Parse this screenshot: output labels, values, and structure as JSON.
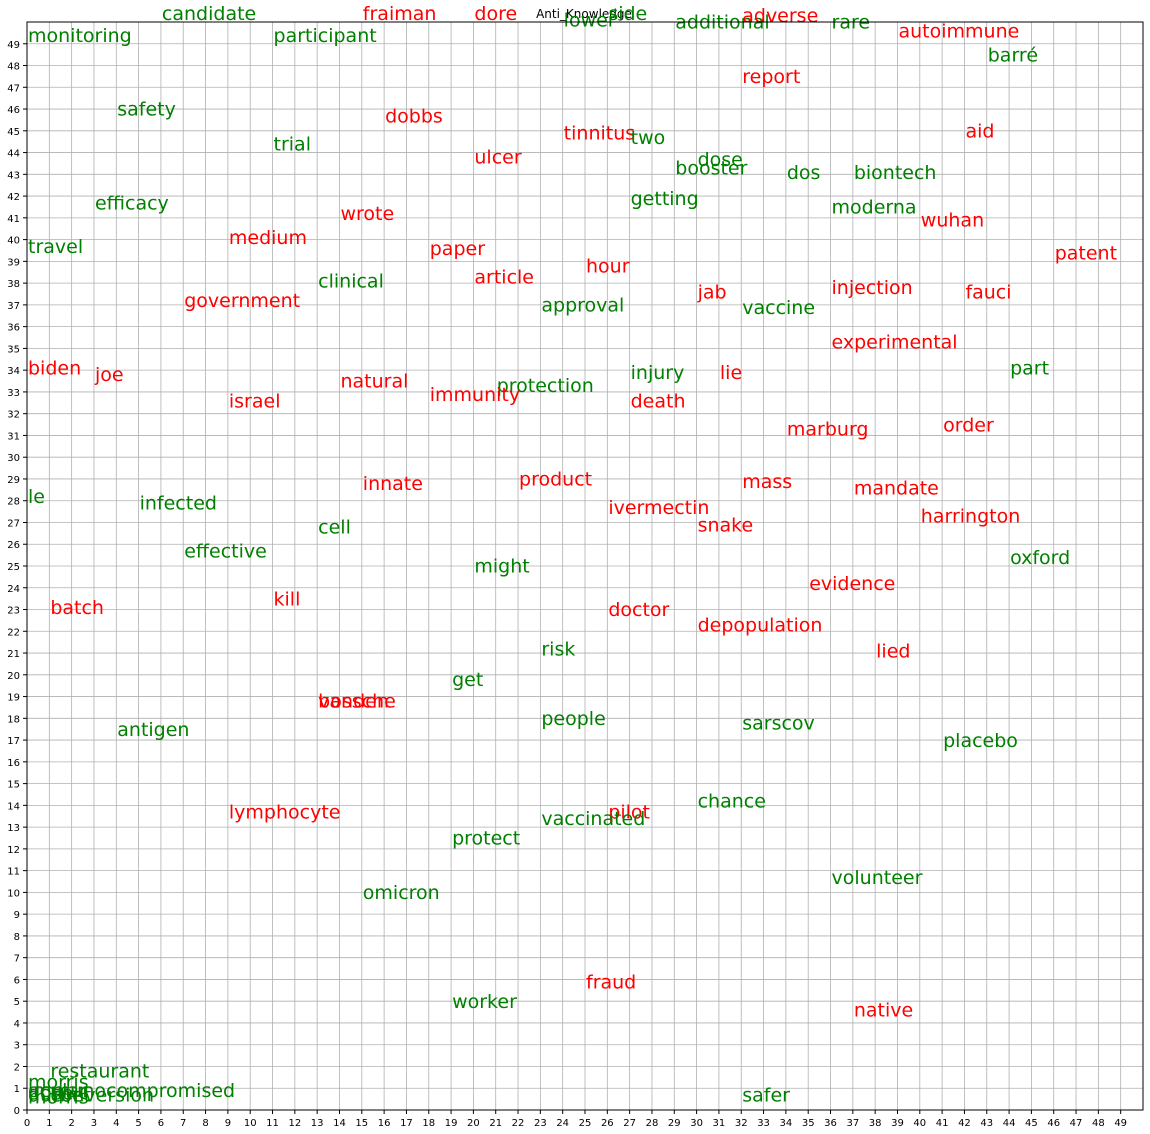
{
  "chart_data": {
    "type": "scatter",
    "title": "Anti_Knowledge",
    "xlabel": "",
    "ylabel": "",
    "xlim": [
      0,
      50
    ],
    "ylim": [
      0,
      50
    ],
    "xticks": [
      0,
      1,
      2,
      3,
      4,
      5,
      6,
      7,
      8,
      9,
      10,
      11,
      12,
      13,
      14,
      15,
      16,
      17,
      18,
      19,
      20,
      21,
      22,
      23,
      24,
      25,
      26,
      27,
      28,
      29,
      30,
      31,
      32,
      33,
      34,
      35,
      36,
      37,
      38,
      39,
      40,
      41,
      42,
      43,
      44,
      45,
      46,
      47,
      48,
      49
    ],
    "yticks": [
      0,
      1,
      2,
      3,
      4,
      5,
      6,
      7,
      8,
      9,
      10,
      11,
      12,
      13,
      14,
      15,
      16,
      17,
      18,
      19,
      20,
      21,
      22,
      23,
      24,
      25,
      26,
      27,
      28,
      29,
      30,
      31,
      32,
      33,
      34,
      35,
      36,
      37,
      38,
      39,
      40,
      41,
      42,
      43,
      44,
      45,
      46,
      47,
      48,
      49
    ],
    "grid": true,
    "colors": {
      "red": "#ff0000",
      "green": "#008000"
    },
    "points": [
      {
        "label": "monitoring",
        "x": 0,
        "y": 49,
        "color": "green"
      },
      {
        "label": "candidate",
        "x": 6,
        "y": 50,
        "color": "green"
      },
      {
        "label": "participant",
        "x": 11,
        "y": 49,
        "color": "green"
      },
      {
        "label": "fraiman",
        "x": 15,
        "y": 50,
        "color": "red"
      },
      {
        "label": "dore",
        "x": 20,
        "y": 50,
        "color": "red"
      },
      {
        "label": "lower",
        "x": 24,
        "y": 49.7,
        "color": "green"
      },
      {
        "label": "side",
        "x": 26,
        "y": 50,
        "color": "green"
      },
      {
        "label": "additional",
        "x": 29,
        "y": 49.6,
        "color": "green"
      },
      {
        "label": "adverse",
        "x": 32,
        "y": 49.9,
        "color": "red"
      },
      {
        "label": "rare",
        "x": 36,
        "y": 49.6,
        "color": "green"
      },
      {
        "label": "autoimmune",
        "x": 39,
        "y": 49.2,
        "color": "red"
      },
      {
        "label": "barré",
        "x": 43,
        "y": 48.1,
        "color": "green"
      },
      {
        "label": "report",
        "x": 32,
        "y": 47.1,
        "color": "red"
      },
      {
        "label": "safety",
        "x": 4,
        "y": 45.6,
        "color": "green"
      },
      {
        "label": "dobbs",
        "x": 16,
        "y": 45.3,
        "color": "red"
      },
      {
        "label": "tinnitus",
        "x": 24,
        "y": 44.5,
        "color": "red"
      },
      {
        "label": "aid",
        "x": 42,
        "y": 44.6,
        "color": "red"
      },
      {
        "label": "two",
        "x": 27,
        "y": 44.3,
        "color": "green"
      },
      {
        "label": "trial",
        "x": 11,
        "y": 44,
        "color": "green"
      },
      {
        "label": "ulcer",
        "x": 20,
        "y": 43.4,
        "color": "red"
      },
      {
        "label": "dose",
        "x": 30,
        "y": 43.3,
        "color": "green"
      },
      {
        "label": "booster",
        "x": 29,
        "y": 42.9,
        "color": "green"
      },
      {
        "label": "dos",
        "x": 34,
        "y": 42.7,
        "color": "green"
      },
      {
        "label": "biontech",
        "x": 37,
        "y": 42.7,
        "color": "green"
      },
      {
        "label": "getting",
        "x": 27,
        "y": 41.5,
        "color": "green"
      },
      {
        "label": "efficacy",
        "x": 3,
        "y": 41.3,
        "color": "green"
      },
      {
        "label": "moderna",
        "x": 36,
        "y": 41.1,
        "color": "green"
      },
      {
        "label": "wrote",
        "x": 14,
        "y": 40.8,
        "color": "red"
      },
      {
        "label": "wuhan",
        "x": 40,
        "y": 40.5,
        "color": "red"
      },
      {
        "label": "medium",
        "x": 9,
        "y": 39.7,
        "color": "red"
      },
      {
        "label": "travel",
        "x": 0,
        "y": 39.3,
        "color": "green"
      },
      {
        "label": "paper",
        "x": 18,
        "y": 39.2,
        "color": "red"
      },
      {
        "label": "patent",
        "x": 46,
        "y": 39,
        "color": "red"
      },
      {
        "label": "hour",
        "x": 25,
        "y": 38.4,
        "color": "red"
      },
      {
        "label": "article",
        "x": 20,
        "y": 37.9,
        "color": "red"
      },
      {
        "label": "clinical",
        "x": 13,
        "y": 37.7,
        "color": "green"
      },
      {
        "label": "injection",
        "x": 36,
        "y": 37.4,
        "color": "red"
      },
      {
        "label": "jab",
        "x": 30,
        "y": 37.2,
        "color": "red"
      },
      {
        "label": "fauci",
        "x": 42,
        "y": 37.2,
        "color": "red"
      },
      {
        "label": "government",
        "x": 7,
        "y": 36.8,
        "color": "red"
      },
      {
        "label": "approval",
        "x": 23,
        "y": 36.6,
        "color": "green"
      },
      {
        "label": "vaccine",
        "x": 32,
        "y": 36.5,
        "color": "green"
      },
      {
        "label": "experimental",
        "x": 36,
        "y": 34.9,
        "color": "red"
      },
      {
        "label": "biden",
        "x": 0,
        "y": 33.7,
        "color": "red"
      },
      {
        "label": "part",
        "x": 44,
        "y": 33.7,
        "color": "green"
      },
      {
        "label": "injury",
        "x": 27,
        "y": 33.5,
        "color": "green"
      },
      {
        "label": "lie",
        "x": 31,
        "y": 33.5,
        "color": "red"
      },
      {
        "label": "joe",
        "x": 3,
        "y": 33.4,
        "color": "red"
      },
      {
        "label": "natural",
        "x": 14,
        "y": 33.1,
        "color": "red"
      },
      {
        "label": "protection",
        "x": 21,
        "y": 32.9,
        "color": "green"
      },
      {
        "label": "immunity",
        "x": 18,
        "y": 32.5,
        "color": "red"
      },
      {
        "label": "israel",
        "x": 9,
        "y": 32.2,
        "color": "red"
      },
      {
        "label": "death",
        "x": 27,
        "y": 32.2,
        "color": "red"
      },
      {
        "label": "order",
        "x": 41,
        "y": 31.1,
        "color": "red"
      },
      {
        "label": "marburg",
        "x": 34,
        "y": 30.9,
        "color": "red"
      },
      {
        "label": "product",
        "x": 22,
        "y": 28.6,
        "color": "red"
      },
      {
        "label": "mass",
        "x": 32,
        "y": 28.5,
        "color": "red"
      },
      {
        "label": "innate",
        "x": 15,
        "y": 28.4,
        "color": "red"
      },
      {
        "label": "mandate",
        "x": 37,
        "y": 28.2,
        "color": "red"
      },
      {
        "label": "le",
        "x": 0,
        "y": 27.8,
        "color": "green"
      },
      {
        "label": "infected",
        "x": 5,
        "y": 27.5,
        "color": "green"
      },
      {
        "label": "ivermectin",
        "x": 26,
        "y": 27.3,
        "color": "red"
      },
      {
        "label": "harrington",
        "x": 40,
        "y": 26.9,
        "color": "red"
      },
      {
        "label": "snake",
        "x": 30,
        "y": 26.5,
        "color": "red"
      },
      {
        "label": "cell",
        "x": 13,
        "y": 26.4,
        "color": "green"
      },
      {
        "label": "effective",
        "x": 7,
        "y": 25.3,
        "color": "green"
      },
      {
        "label": "oxford",
        "x": 44,
        "y": 25,
        "color": "green"
      },
      {
        "label": "might",
        "x": 20,
        "y": 24.6,
        "color": "green"
      },
      {
        "label": "evidence",
        "x": 35,
        "y": 23.8,
        "color": "red"
      },
      {
        "label": "kill",
        "x": 11,
        "y": 23.1,
        "color": "red"
      },
      {
        "label": "batch",
        "x": 1,
        "y": 22.7,
        "color": "red"
      },
      {
        "label": "doctor",
        "x": 26,
        "y": 22.6,
        "color": "red"
      },
      {
        "label": "depopulation",
        "x": 30,
        "y": 21.9,
        "color": "red"
      },
      {
        "label": "risk",
        "x": 23,
        "y": 20.8,
        "color": "green"
      },
      {
        "label": "lied",
        "x": 38,
        "y": 20.7,
        "color": "red"
      },
      {
        "label": "get",
        "x": 19,
        "y": 19.4,
        "color": "green"
      },
      {
        "label": "vanden",
        "x": 13,
        "y": 18.4,
        "color": "red"
      },
      {
        "label": "bossche",
        "x": 13,
        "y": 18.4,
        "color": "red"
      },
      {
        "label": "people",
        "x": 23,
        "y": 17.6,
        "color": "green"
      },
      {
        "label": "sarscov",
        "x": 32,
        "y": 17.4,
        "color": "green"
      },
      {
        "label": "antigen",
        "x": 4,
        "y": 17.1,
        "color": "green"
      },
      {
        "label": "placebo",
        "x": 41,
        "y": 16.6,
        "color": "green"
      },
      {
        "label": "chance",
        "x": 30,
        "y": 13.8,
        "color": "green"
      },
      {
        "label": "lymphocyte",
        "x": 9,
        "y": 13.3,
        "color": "red"
      },
      {
        "label": "pilot",
        "x": 26,
        "y": 13.3,
        "color": "red"
      },
      {
        "label": "vaccinated",
        "x": 23,
        "y": 13,
        "color": "green"
      },
      {
        "label": "protect",
        "x": 19,
        "y": 12.1,
        "color": "green"
      },
      {
        "label": "volunteer",
        "x": 36,
        "y": 10.3,
        "color": "green"
      },
      {
        "label": "omicron",
        "x": 15,
        "y": 9.6,
        "color": "green"
      },
      {
        "label": "fraud",
        "x": 25,
        "y": 5.5,
        "color": "red"
      },
      {
        "label": "worker",
        "x": 19,
        "y": 4.6,
        "color": "green"
      },
      {
        "label": "native",
        "x": 37,
        "y": 4.2,
        "color": "red"
      },
      {
        "label": "restaurant",
        "x": 1,
        "y": 1.4,
        "color": "green"
      },
      {
        "label": "morris",
        "x": 0,
        "y": 0.9,
        "color": "green"
      },
      {
        "label": "immunocompromised",
        "x": 0,
        "y": 0.5,
        "color": "green"
      },
      {
        "label": "safer",
        "x": 32,
        "y": 0.3,
        "color": "green"
      },
      {
        "label": "conversion",
        "x": 1,
        "y": 0.3,
        "color": "green"
      },
      {
        "label": "ocular",
        "x": 0,
        "y": 0.5,
        "color": "green"
      },
      {
        "label": "durbet",
        "x": 0,
        "y": 0.3,
        "color": "green"
      },
      {
        "label": "dose",
        "x": 0,
        "y": 0.4,
        "color": "green"
      },
      {
        "label": "morris",
        "x": 0,
        "y": 0.2,
        "color": "green"
      }
    ]
  }
}
